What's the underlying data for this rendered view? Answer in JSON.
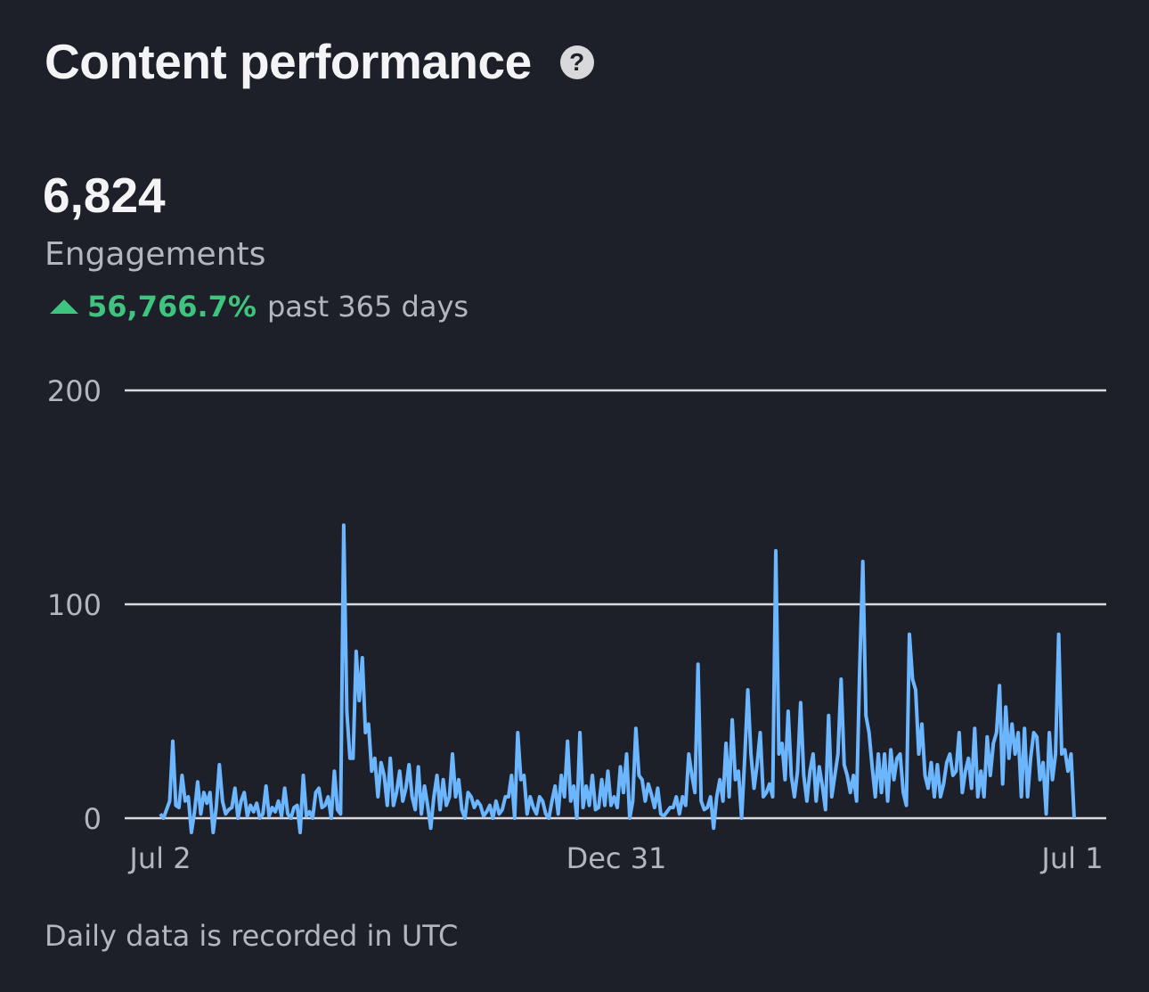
{
  "header": {
    "title": "Content performance",
    "help_icon": "question-circle-icon"
  },
  "summary": {
    "value": "6,824",
    "label": "Engagements",
    "change_icon": "triangle-up-icon",
    "change_pct": "56,766.7%",
    "change_period": "past 365 days"
  },
  "footer": {
    "note": "Daily data is recorded in UTC"
  },
  "colors": {
    "background": "#1e2029",
    "line": "#6cb6ff",
    "grid": "#d9d9dc",
    "positive": "#3ec47f"
  },
  "chart_data": {
    "type": "line",
    "title": "",
    "xlabel": "",
    "ylabel": "",
    "ylim": [
      0,
      200
    ],
    "y_ticks": [
      0,
      100,
      200
    ],
    "x_tick_labels": [
      "Jul 2",
      "Dec 31",
      "Jul 1"
    ],
    "grid": true,
    "series": [
      {
        "values": [
          2,
          0,
          4,
          8,
          36,
          6,
          5,
          20,
          8,
          10,
          0,
          3,
          17,
          2,
          12,
          7,
          12,
          0,
          5,
          25,
          8,
          2,
          4,
          5,
          14,
          0,
          8,
          12,
          1,
          6,
          3,
          7,
          0,
          2,
          15,
          1,
          5,
          3,
          8,
          1,
          14,
          2,
          0,
          5,
          6,
          0,
          20,
          1,
          3,
          0,
          12,
          14,
          5,
          6,
          10,
          0,
          22,
          4,
          2,
          137,
          50,
          28,
          28,
          78,
          55,
          75,
          40,
          44,
          22,
          28,
          10,
          26,
          20,
          6,
          28,
          6,
          12,
          22,
          8,
          14,
          25,
          10,
          4,
          24,
          2,
          15,
          6,
          2,
          10,
          20,
          4,
          18,
          6,
          10,
          30,
          10,
          18,
          4,
          0,
          12,
          10,
          5,
          8,
          6,
          1,
          3,
          6,
          0,
          8,
          2,
          4,
          10,
          10,
          20,
          0,
          40,
          18,
          20,
          2,
          10,
          5,
          2,
          10,
          8,
          2,
          0,
          8,
          15,
          2,
          20,
          10,
          36,
          8,
          15,
          0,
          40,
          5,
          15,
          6,
          20,
          4,
          5,
          18,
          6,
          22,
          6,
          10,
          5,
          24,
          12,
          30,
          0,
          8,
          42,
          20,
          18,
          8,
          16,
          11,
          5,
          14,
          2,
          1,
          3,
          5,
          5,
          10,
          2,
          10,
          6,
          30,
          20,
          12,
          72,
          8,
          4,
          5,
          10,
          2,
          10,
          18,
          8,
          35,
          10,
          46,
          18,
          22,
          0,
          28,
          60,
          30,
          14,
          25,
          40,
          10,
          12,
          16,
          10,
          125,
          30,
          35,
          18,
          50,
          20,
          10,
          22,
          54,
          20,
          8,
          22,
          30,
          8,
          24,
          15,
          4,
          48,
          10,
          20,
          30,
          65,
          25,
          20,
          12,
          20,
          8,
          70,
          120,
          48,
          40,
          24,
          10,
          30,
          12,
          30,
          8,
          32,
          18,
          28,
          30,
          12,
          6,
          86,
          65,
          60,
          30,
          44,
          20,
          14,
          26,
          10,
          25,
          10,
          16,
          26,
          30,
          20,
          22,
          40,
          12,
          22,
          28,
          14,
          42,
          10,
          22,
          10,
          38,
          20,
          35,
          40,
          62,
          16,
          52,
          28,
          44,
          30,
          40,
          10,
          42,
          10,
          28,
          40,
          38,
          18,
          26,
          2,
          40,
          18,
          30,
          86,
          30,
          32,
          22,
          30,
          0
        ]
      }
    ]
  }
}
